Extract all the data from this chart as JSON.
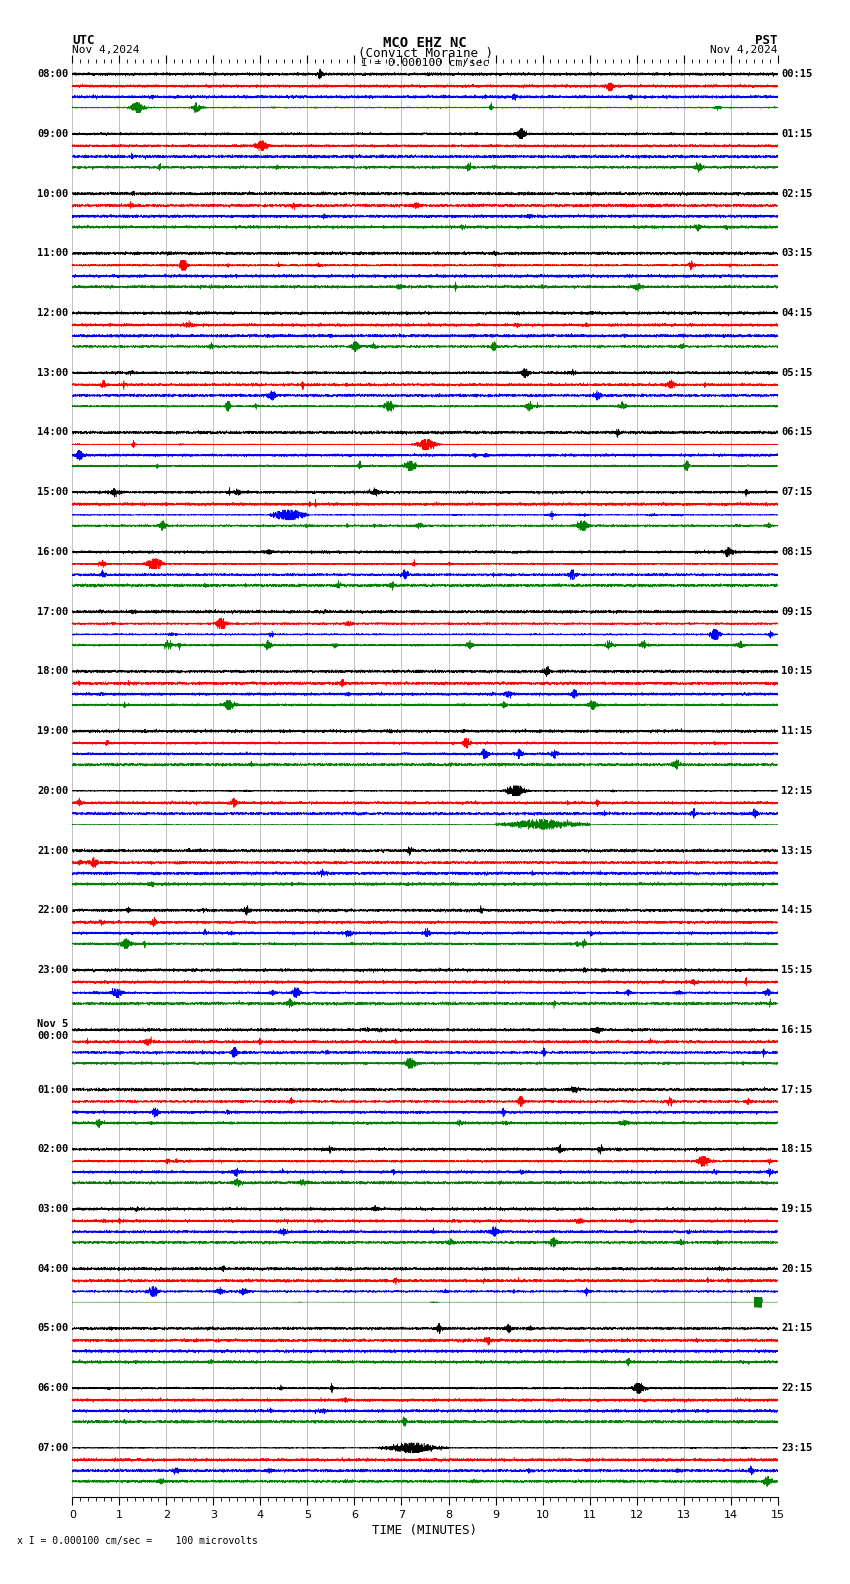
{
  "title_line1": "MCO EHZ NC",
  "title_line2": "(Convict Moraine )",
  "scale_label": "I = 0.000100 cm/sec",
  "left_timezone": "UTC",
  "left_date": "Nov 4,2024",
  "right_timezone": "PST",
  "right_date": "Nov 4,2024",
  "bottom_label": "TIME (MINUTES)",
  "bottom_note": "x I = 0.000100 cm/sec =    100 microvolts",
  "utc_start_labels": [
    "08:00",
    "09:00",
    "10:00",
    "11:00",
    "12:00",
    "13:00",
    "14:00",
    "15:00",
    "16:00",
    "17:00",
    "18:00",
    "19:00",
    "20:00",
    "21:00",
    "22:00",
    "23:00",
    "Nov 5\n00:00",
    "01:00",
    "02:00",
    "03:00",
    "04:00",
    "05:00",
    "06:00",
    "07:00"
  ],
  "pst_start_labels": [
    "00:15",
    "01:15",
    "02:15",
    "03:15",
    "04:15",
    "05:15",
    "06:15",
    "07:15",
    "08:15",
    "09:15",
    "10:15",
    "11:15",
    "12:15",
    "13:15",
    "14:15",
    "15:15",
    "16:15",
    "17:15",
    "18:15",
    "19:15",
    "20:15",
    "21:15",
    "22:15",
    "23:15"
  ],
  "num_rows": 24,
  "traces_per_row": 4,
  "colors": [
    "black",
    "red",
    "blue",
    "green"
  ],
  "bg_color": "#ffffff",
  "grid_color": "#aaaaaa",
  "fig_width": 8.5,
  "fig_height": 15.84,
  "dpi": 100,
  "x_min": 0,
  "x_max": 15,
  "x_ticks": [
    0,
    1,
    2,
    3,
    4,
    5,
    6,
    7,
    8,
    9,
    10,
    11,
    12,
    13,
    14,
    15
  ]
}
